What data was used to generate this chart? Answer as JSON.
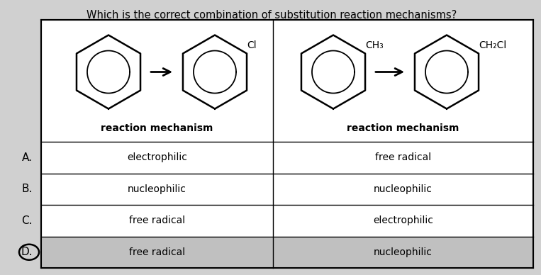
{
  "title": "Which is the correct combination of substitution reaction mechanisms?",
  "title_fontsize": 10.5,
  "background_color": "#d0d0d0",
  "rows": [
    {
      "label": "A.",
      "col1": "electrophilic",
      "col2": "free radical"
    },
    {
      "label": "B.",
      "col1": "nucleophilic",
      "col2": "nucleophilic"
    },
    {
      "label": "C.",
      "col1": "free radical",
      "col2": "electrophilic"
    },
    {
      "label": "D.",
      "col1": "free radical",
      "col2": "nucleophilic"
    }
  ],
  "col1_header": "reaction mechanism",
  "col2_header": "reaction mechanism",
  "col1_chem_label": "Cl",
  "col2_chem_label1": "CH₃",
  "col2_chem_label2": "CH₂Cl",
  "text_color": "#000000",
  "highlight_row_idx": 3,
  "highlight_color": "#c0c0c0"
}
